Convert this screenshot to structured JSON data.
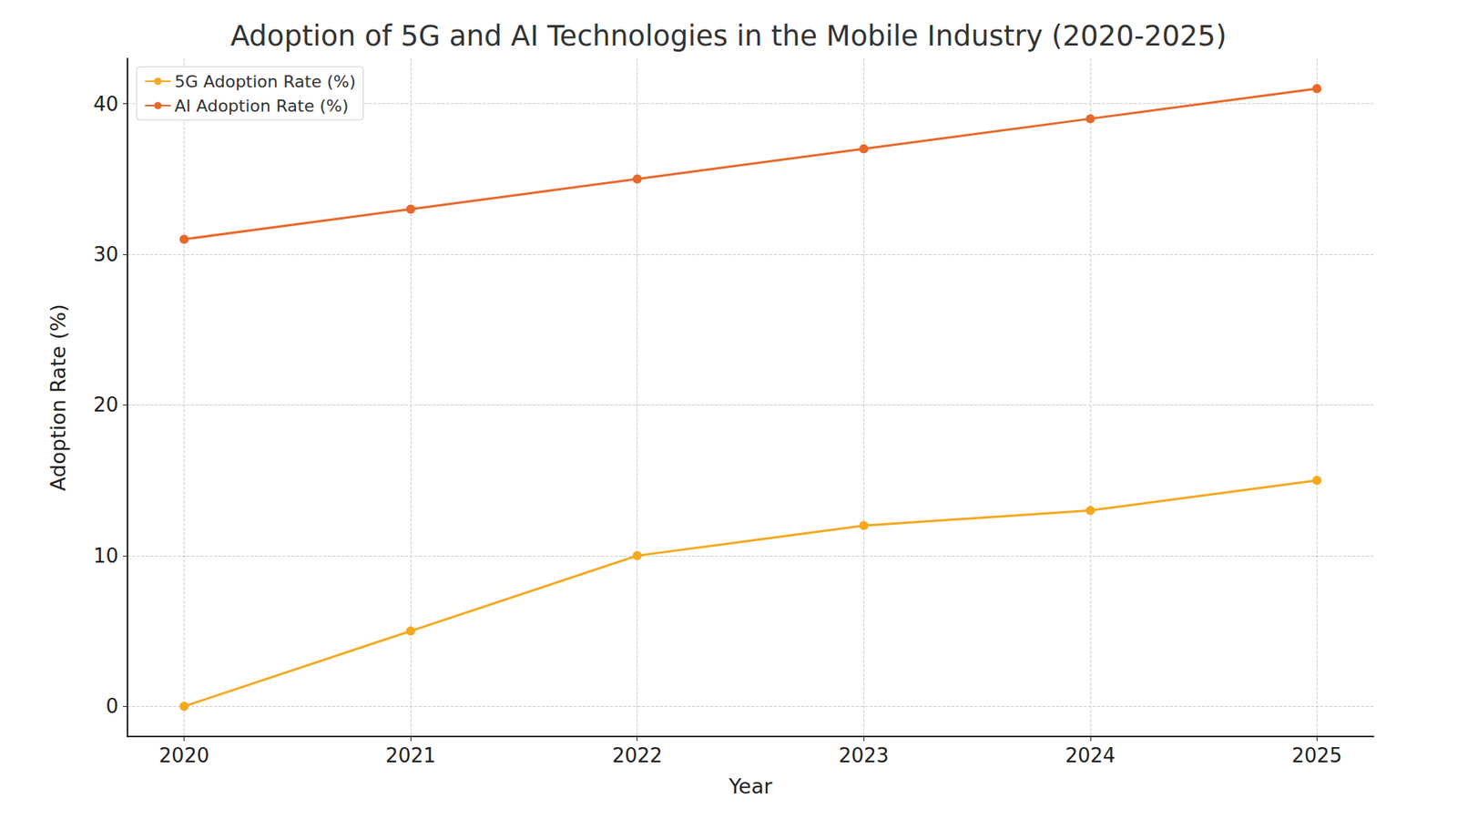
{
  "chart_data": {
    "type": "line",
    "title": "Adoption of 5G and AI Technologies in the Mobile Industry (2020-2025)",
    "x_label": "Year",
    "y_label": "Adoption Rate (%)",
    "x": [
      2020,
      2021,
      2022,
      2023,
      2024,
      2025
    ],
    "series": [
      {
        "name": "5G Adoption Rate (%)",
        "color": "#f5a81c",
        "values": [
          0,
          5,
          10,
          12,
          13,
          15
        ]
      },
      {
        "name": "AI Adoption Rate (%)",
        "color": "#e8682a",
        "values": [
          31,
          33,
          35,
          37,
          39,
          41
        ]
      }
    ],
    "xlim": [
      2019.75,
      2025.25
    ],
    "xticks": [
      2020,
      2021,
      2022,
      2023,
      2024,
      2025
    ],
    "ylim": [
      -2,
      43
    ],
    "yticks": [
      0,
      10,
      20,
      30,
      40
    ],
    "grid": true,
    "legend": "upper left",
    "marker": "circle",
    "line_style": "solid"
  }
}
